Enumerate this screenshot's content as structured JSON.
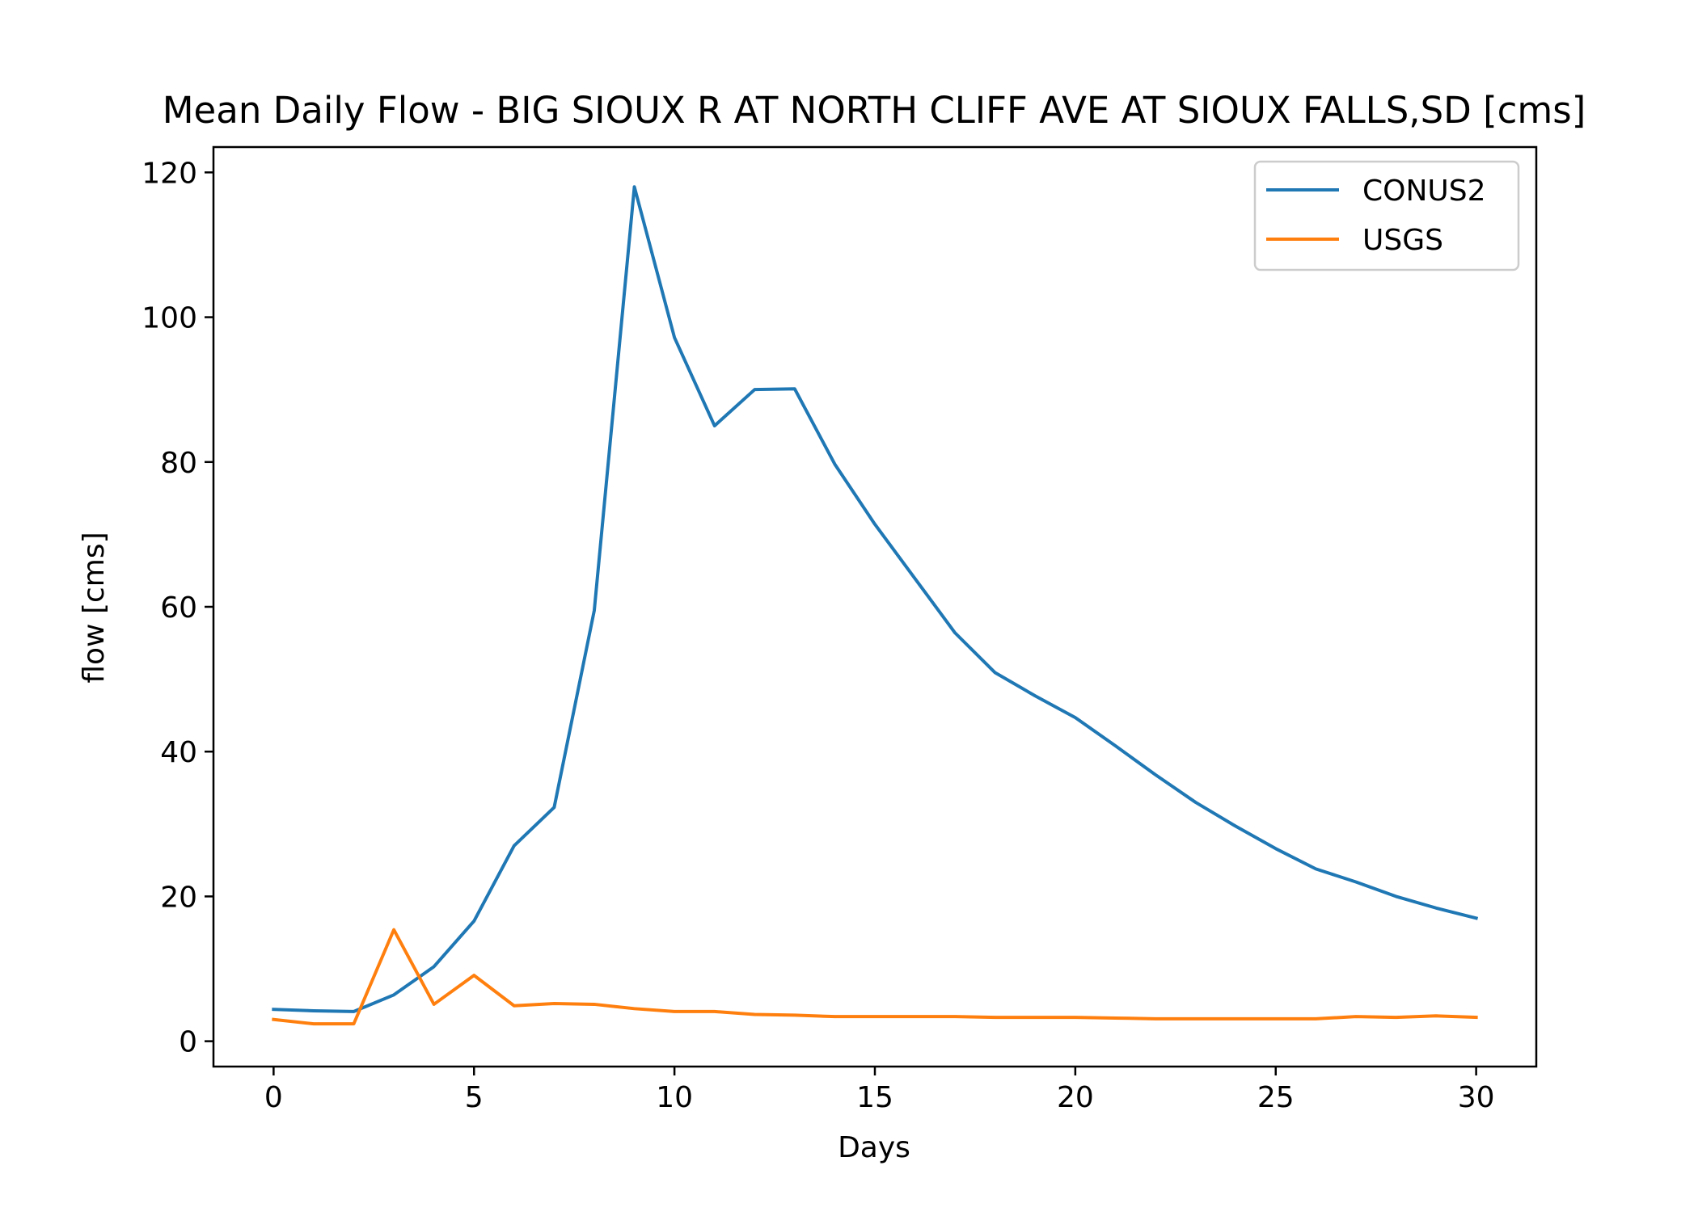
{
  "chart_data": {
    "type": "line",
    "title": "Mean Daily Flow - BIG SIOUX R AT NORTH CLIFF AVE AT SIOUX FALLS,SD [cms]",
    "xlabel": "Days",
    "ylabel": "flow [cms]",
    "xlim": [
      -1.5,
      31.5
    ],
    "ylim": [
      -3.5,
      123.5
    ],
    "x_ticks": [
      "0",
      "5",
      "10",
      "15",
      "20",
      "25",
      "30"
    ],
    "y_ticks": [
      "0",
      "20",
      "40",
      "60",
      "80",
      "100",
      "120"
    ],
    "grid": false,
    "legend_position": "upper right",
    "x": [
      0,
      1,
      2,
      3,
      4,
      5,
      6,
      7,
      8,
      9,
      10,
      11,
      12,
      13,
      14,
      15,
      16,
      17,
      18,
      19,
      20,
      21,
      22,
      23,
      24,
      25,
      26,
      27,
      28,
      29,
      30
    ],
    "series": [
      {
        "name": "CONUS2",
        "color": "#1f77b4",
        "values": [
          4.4,
          4.2,
          4.1,
          6.4,
          10.3,
          16.6,
          27.0,
          32.3,
          59.5,
          118.0,
          97.2,
          85.0,
          90.0,
          90.1,
          79.7,
          71.4,
          63.9,
          56.4,
          50.9,
          47.7,
          44.7,
          40.8,
          36.8,
          33.0,
          29.7,
          26.6,
          23.8,
          22.0,
          20.0,
          18.4,
          17.0
        ]
      },
      {
        "name": "USGS",
        "color": "#ff7f0e",
        "values": [
          3.0,
          2.4,
          2.4,
          15.4,
          5.1,
          9.1,
          4.9,
          5.2,
          5.1,
          4.5,
          4.1,
          4.1,
          3.7,
          3.6,
          3.4,
          3.4,
          3.4,
          3.4,
          3.3,
          3.3,
          3.3,
          3.2,
          3.1,
          3.1,
          3.1,
          3.1,
          3.1,
          3.4,
          3.3,
          3.5,
          3.3
        ]
      }
    ]
  }
}
